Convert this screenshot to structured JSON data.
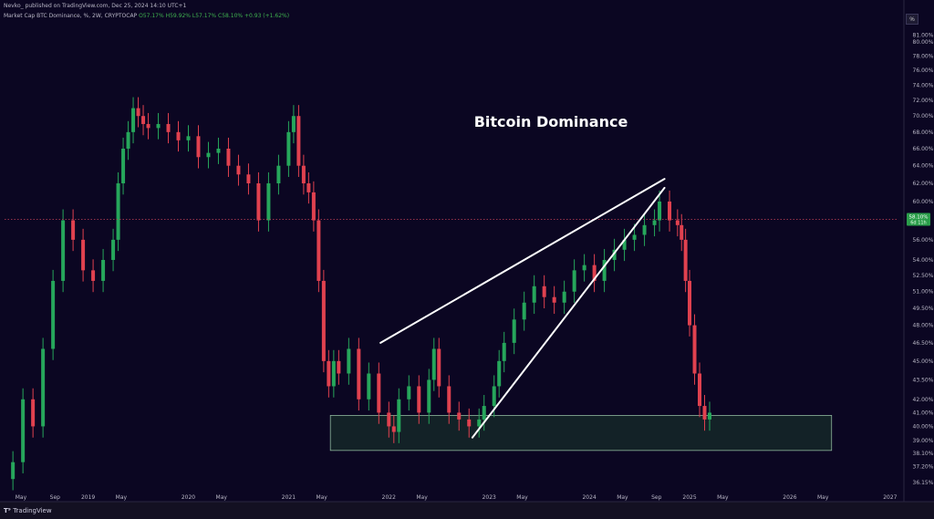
{
  "header": {
    "publisher_line": "Nevko_ published on TradingView.com, Dec 25, 2024 14:10 UTC+1",
    "symbol_line": "Market Cap BTC Dominance, %, 2W, CRYPTOCAP",
    "ohlc": "O57.17% H59.92% L57.17% C58.10% +0.93 (+1.62%)"
  },
  "scale_button": "%",
  "footer": {
    "logo": "TradingView"
  },
  "colors": {
    "bg": "#0b0622",
    "up": "#26a65b",
    "down": "#e0414f",
    "zone": "#1b3a2b",
    "line": "#ffffff"
  },
  "price_badge": {
    "value": "58.10%",
    "countdown": "6d 11h"
  },
  "chart_data": {
    "type": "candlestick",
    "title": "Bitcoin Dominance",
    "y_scale": "log",
    "ylim": [
      35.5,
      83.5
    ],
    "x_start": "2018-03",
    "x_end": "2027-02",
    "y_ticks": [
      "81.00%",
      "80.00%",
      "78.00%",
      "76.00%",
      "74.00%",
      "72.00%",
      "70.00%",
      "68.00%",
      "66.00%",
      "64.00%",
      "62.00%",
      "60.00%",
      "58.10%",
      "56.00%",
      "54.00%",
      "52.50%",
      "51.00%",
      "49.50%",
      "48.00%",
      "46.50%",
      "45.00%",
      "43.50%",
      "42.00%",
      "41.00%",
      "40.00%",
      "39.00%",
      "38.10%",
      "37.20%",
      "36.15%"
    ],
    "x_ticks": [
      "May",
      "Sep",
      "2019",
      "May",
      "2020",
      "May",
      "2021",
      "May",
      "2022",
      "May",
      "2023",
      "May",
      "2024",
      "May",
      "Sep",
      "2025",
      "May",
      "2026",
      "May",
      "2027"
    ],
    "support_zone": {
      "from": "2021-06",
      "to": "2026-06",
      "low": 38.3,
      "high": 40.8
    },
    "rising_wedge": {
      "upper_line": {
        "start": [
          "2021-12",
          46.5
        ],
        "end": [
          "2024-10",
          62.5
        ]
      },
      "lower_line": {
        "start": [
          "2022-11",
          39.2
        ],
        "end": [
          "2024-10",
          61.5
        ]
      }
    },
    "last_price": 58.1,
    "candles_close": [
      [
        2018.25,
        37.5
      ],
      [
        2018.35,
        42.0
      ],
      [
        2018.45,
        40.0
      ],
      [
        2018.55,
        46.0
      ],
      [
        2018.65,
        52.0
      ],
      [
        2018.75,
        58.0
      ],
      [
        2018.85,
        56.0
      ],
      [
        2018.95,
        53.0
      ],
      [
        2019.05,
        52.0
      ],
      [
        2019.15,
        54.0
      ],
      [
        2019.25,
        56.0
      ],
      [
        2019.3,
        62.0
      ],
      [
        2019.35,
        66.0
      ],
      [
        2019.4,
        68.0
      ],
      [
        2019.45,
        71.0
      ],
      [
        2019.5,
        70.0
      ],
      [
        2019.55,
        69.0
      ],
      [
        2019.6,
        68.5
      ],
      [
        2019.7,
        69.0
      ],
      [
        2019.8,
        68.0
      ],
      [
        2019.9,
        67.0
      ],
      [
        2020.0,
        67.5
      ],
      [
        2020.1,
        65.0
      ],
      [
        2020.2,
        65.5
      ],
      [
        2020.3,
        66.0
      ],
      [
        2020.4,
        64.0
      ],
      [
        2020.5,
        63.0
      ],
      [
        2020.6,
        62.0
      ],
      [
        2020.7,
        58.0
      ],
      [
        2020.8,
        62.0
      ],
      [
        2020.9,
        64.0
      ],
      [
        2021.0,
        68.0
      ],
      [
        2021.05,
        70.0
      ],
      [
        2021.1,
        64.0
      ],
      [
        2021.15,
        62.0
      ],
      [
        2021.2,
        61.0
      ],
      [
        2021.25,
        58.0
      ],
      [
        2021.3,
        52.0
      ],
      [
        2021.35,
        45.0
      ],
      [
        2021.4,
        43.0
      ],
      [
        2021.45,
        45.0
      ],
      [
        2021.5,
        44.0
      ],
      [
        2021.6,
        46.0
      ],
      [
        2021.7,
        42.0
      ],
      [
        2021.8,
        44.0
      ],
      [
        2021.9,
        41.0
      ],
      [
        2022.0,
        40.0
      ],
      [
        2022.05,
        39.6
      ],
      [
        2022.1,
        42.0
      ],
      [
        2022.2,
        43.0
      ],
      [
        2022.3,
        41.0
      ],
      [
        2022.4,
        43.5
      ],
      [
        2022.45,
        46.0
      ],
      [
        2022.5,
        43.0
      ],
      [
        2022.6,
        41.0
      ],
      [
        2022.7,
        40.5
      ],
      [
        2022.8,
        40.0
      ],
      [
        2022.9,
        40.5
      ],
      [
        2022.95,
        41.5
      ],
      [
        2023.05,
        43.0
      ],
      [
        2023.1,
        45.0
      ],
      [
        2023.15,
        46.5
      ],
      [
        2023.25,
        48.5
      ],
      [
        2023.35,
        50.0
      ],
      [
        2023.45,
        51.5
      ],
      [
        2023.55,
        50.5
      ],
      [
        2023.65,
        50.0
      ],
      [
        2023.75,
        51.0
      ],
      [
        2023.85,
        53.0
      ],
      [
        2023.95,
        53.5
      ],
      [
        2024.05,
        52.0
      ],
      [
        2024.15,
        54.0
      ],
      [
        2024.25,
        55.0
      ],
      [
        2024.35,
        56.0
      ],
      [
        2024.45,
        56.5
      ],
      [
        2024.55,
        57.5
      ],
      [
        2024.65,
        58.0
      ],
      [
        2024.7,
        60.0
      ],
      [
        2024.8,
        58.0
      ],
      [
        2024.88,
        57.5
      ],
      [
        2024.92,
        56.0
      ],
      [
        2024.96,
        52.0
      ],
      [
        2025.0,
        48.0
      ],
      [
        2025.05,
        44.0
      ],
      [
        2025.1,
        41.5
      ],
      [
        2025.15,
        40.5
      ],
      [
        2025.2,
        41.0
      ]
    ]
  }
}
